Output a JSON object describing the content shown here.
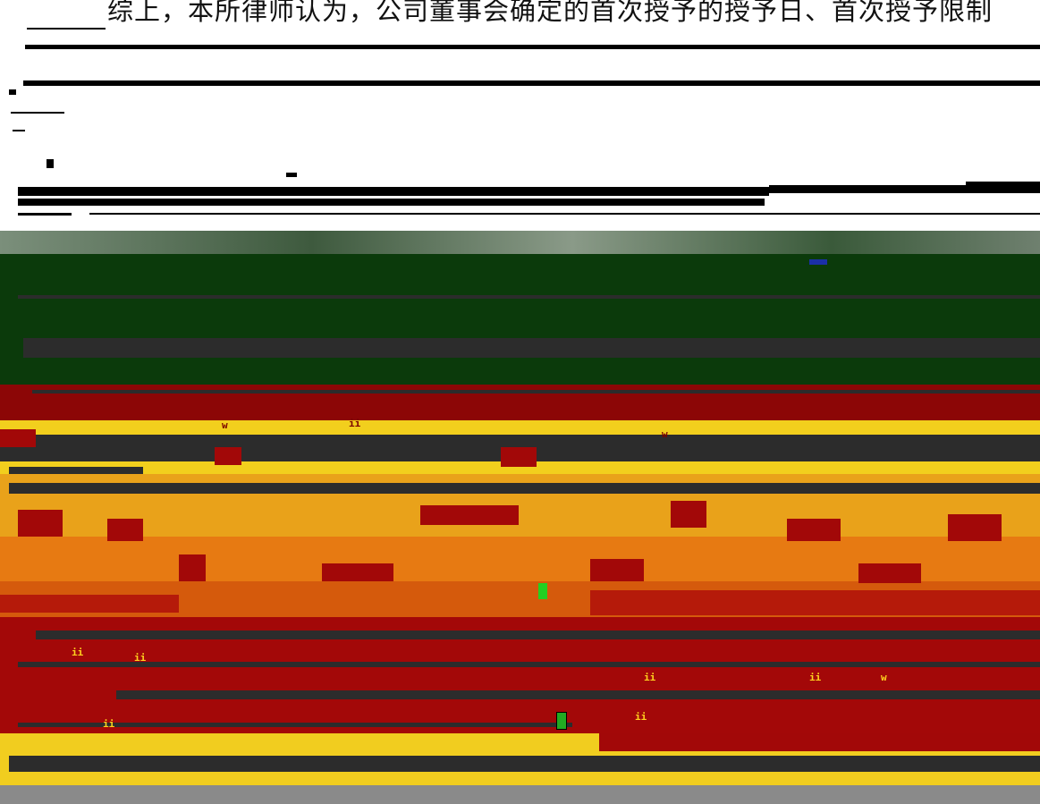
{
  "document": {
    "heading_line": "综上，本所律师认为，公司董事会确定的首次授予的授予日、首次授予限制"
  },
  "colors": {
    "background": "#ffffff",
    "ink": "#000000",
    "green_band": "#0b3a0b",
    "red_band": "#a50a0a",
    "orange_band": "#e06010",
    "yellow_band": "#f5d21e",
    "dark_bar": "#2c2c2c",
    "footer_gray": "#8a8a8a"
  }
}
